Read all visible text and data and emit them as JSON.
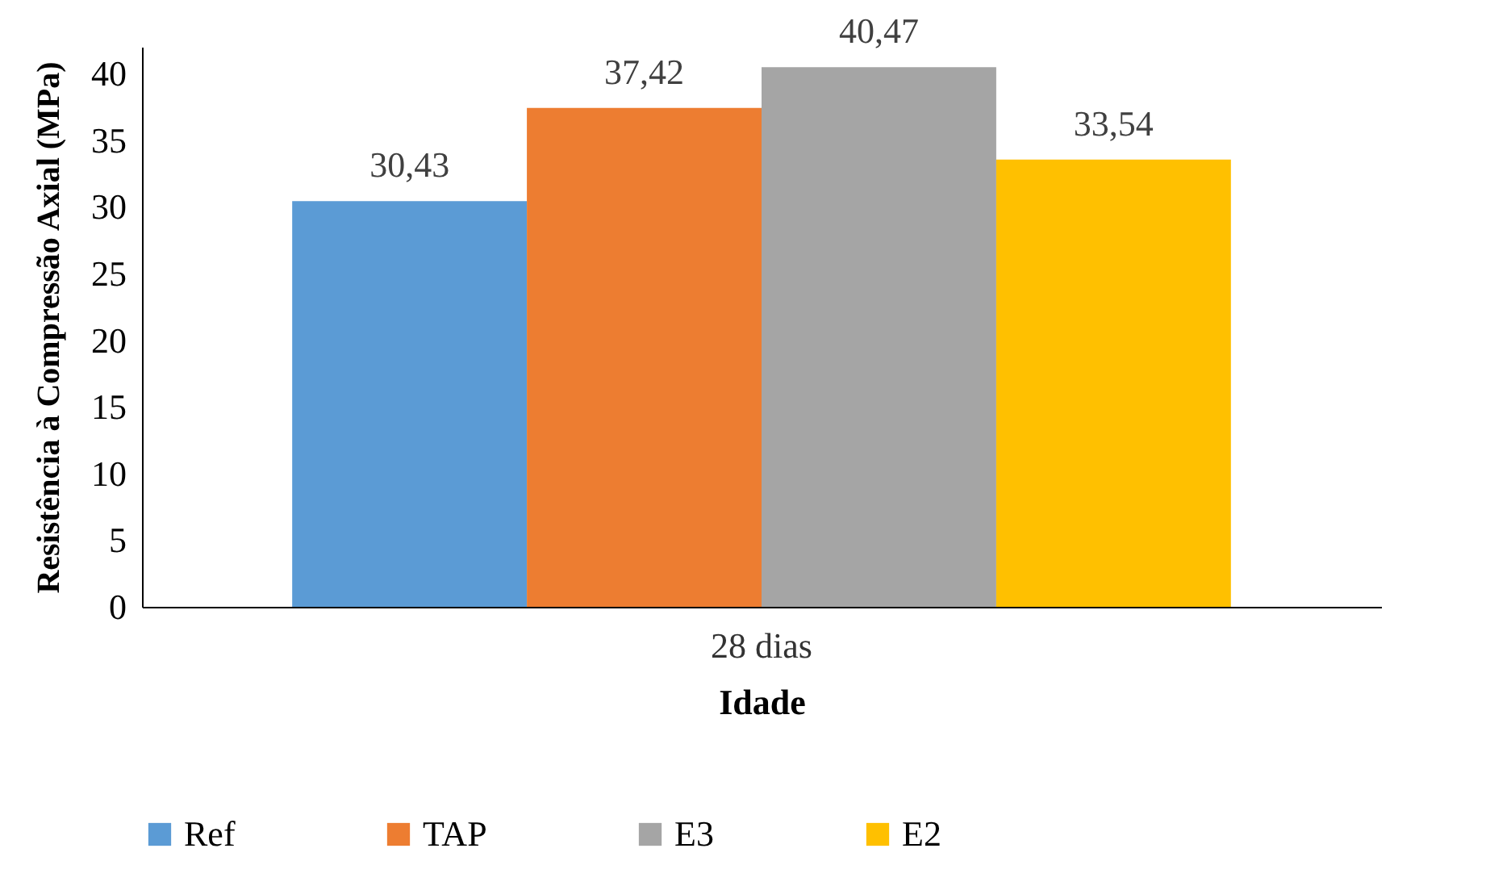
{
  "chart_data": {
    "type": "bar",
    "xlabel": "Idade",
    "ylabel": "Resistência à Compressão Axial (MPa)",
    "categories": [
      "28 dias"
    ],
    "series": [
      {
        "name": "Ref",
        "color": "#5b9bd5",
        "values": [
          30.43
        ],
        "value_labels": [
          "30,43"
        ]
      },
      {
        "name": "TAP",
        "color": "#ed7d31",
        "values": [
          37.42
        ],
        "value_labels": [
          "37,42"
        ]
      },
      {
        "name": "E3",
        "color": "#a5a5a5",
        "values": [
          40.47
        ],
        "value_labels": [
          "40,47"
        ]
      },
      {
        "name": "E2",
        "color": "#ffc000",
        "values": [
          33.54
        ],
        "value_labels": [
          "33,54"
        ]
      }
    ],
    "ylim": [
      0,
      42
    ],
    "yticks": [
      0,
      5,
      10,
      15,
      20,
      25,
      30,
      35,
      40
    ],
    "grid": false,
    "legend": "bottom"
  }
}
